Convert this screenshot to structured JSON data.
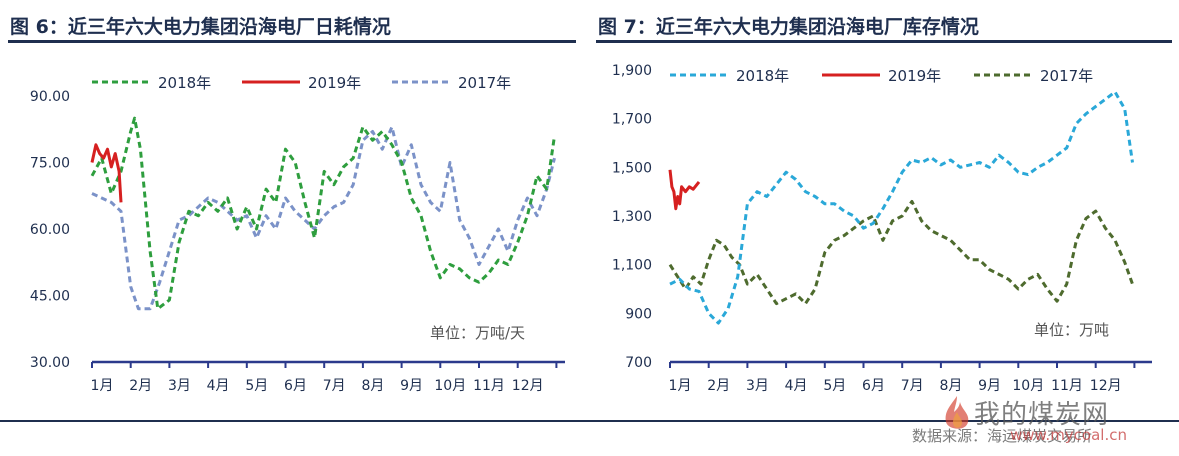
{
  "footer": {
    "source": "数据来源：海运煤炭交易所"
  },
  "watermark": {
    "text": "我的煤炭网",
    "url": "www.mycoal.cn"
  },
  "chart_data": [
    {
      "type": "line",
      "title": "图 6：近三年六大电力集团沿海电厂日耗情况",
      "unit_label": "单位：万吨/天",
      "categories": [
        "1月",
        "2月",
        "3月",
        "4月",
        "5月",
        "6月",
        "7月",
        "8月",
        "9月",
        "10月",
        "11月",
        "12月"
      ],
      "ylim": [
        30,
        90
      ],
      "y_ticks": [
        "90.00",
        "75.00",
        "60.00",
        "45.00",
        "30.00"
      ],
      "legend_position": "top",
      "colors": {
        "2018年": "#2e9e3e",
        "2019年": "#d62020",
        "2017年": "#7b92c8"
      },
      "series": [
        {
          "name": "2018年",
          "style": "dashed",
          "x": [
            1.0,
            1.25,
            1.5,
            1.75,
            2.0,
            2.1,
            2.25,
            2.5,
            2.7,
            3.0,
            3.25,
            3.5,
            3.75,
            4.0,
            4.25,
            4.5,
            4.75,
            5.0,
            5.25,
            5.5,
            5.75,
            6.0,
            6.25,
            6.5,
            6.75,
            7.0,
            7.25,
            7.5,
            7.75,
            8.0,
            8.25,
            8.5,
            8.75,
            9.0,
            9.25,
            9.5,
            9.75,
            10.0,
            10.25,
            10.5,
            10.75,
            11.0,
            11.25,
            11.5,
            11.75,
            12.0,
            12.25,
            12.5,
            12.75,
            12.95
          ],
          "y": [
            72,
            76,
            68,
            73,
            82,
            85,
            78,
            55,
            42,
            44,
            57,
            64,
            63,
            66,
            64,
            67,
            60,
            65,
            60,
            69,
            66,
            78,
            75,
            66,
            58,
            73,
            70,
            74,
            76,
            83,
            80,
            82,
            79,
            75,
            67,
            63,
            55,
            49,
            52,
            51,
            49,
            48,
            50,
            53,
            52,
            57,
            63,
            72,
            69,
            81
          ]
        },
        {
          "name": "2019年",
          "style": "solid",
          "x": [
            1.0,
            1.1,
            1.2,
            1.3,
            1.4,
            1.5,
            1.6,
            1.7,
            1.75
          ],
          "y": [
            75,
            79,
            77,
            76,
            78,
            74,
            77,
            73,
            66
          ]
        },
        {
          "name": "2017年",
          "style": "dashed",
          "x": [
            1.0,
            1.25,
            1.5,
            1.75,
            2.0,
            2.2,
            2.5,
            2.75,
            3.0,
            3.25,
            3.5,
            3.75,
            4.0,
            4.25,
            4.5,
            4.75,
            5.0,
            5.25,
            5.5,
            5.75,
            6.0,
            6.25,
            6.5,
            6.75,
            7.0,
            7.25,
            7.5,
            7.75,
            8.0,
            8.25,
            8.5,
            8.75,
            9.0,
            9.25,
            9.5,
            9.75,
            10.0,
            10.25,
            10.5,
            10.75,
            11.0,
            11.25,
            11.5,
            11.75,
            12.0,
            12.25,
            12.5,
            12.75,
            12.95
          ],
          "y": [
            68,
            67,
            66,
            64,
            47,
            42,
            42,
            48,
            55,
            62,
            63,
            65,
            67,
            66,
            64,
            62,
            63,
            58,
            63,
            60,
            67,
            64,
            62,
            60,
            63,
            65,
            66,
            70,
            80,
            82,
            78,
            83,
            74,
            79,
            70,
            66,
            64,
            75,
            62,
            58,
            52,
            56,
            60,
            55,
            62,
            67,
            63,
            69,
            76
          ]
        }
      ],
      "xlabel": "",
      "ylabel": ""
    },
    {
      "type": "line",
      "title": "图 7：近三年六大电力集团沿海电厂库存情况",
      "unit_label": "单位：万吨",
      "categories": [
        "1月",
        "2月",
        "3月",
        "4月",
        "5月",
        "6月",
        "7月",
        "8月",
        "9月",
        "10月",
        "11月",
        "12月"
      ],
      "ylim": [
        700,
        1900
      ],
      "y_ticks": [
        "1,900",
        "1,700",
        "1,500",
        "1,300",
        "1,100",
        "900",
        "700"
      ],
      "legend_position": "top",
      "colors": {
        "2018年": "#2aa8d8",
        "2019年": "#d62020",
        "2017年": "#4e6b2e"
      },
      "series": [
        {
          "name": "2018年",
          "style": "dashed",
          "x": [
            1.0,
            1.25,
            1.5,
            1.75,
            2.0,
            2.25,
            2.5,
            2.75,
            3.0,
            3.25,
            3.5,
            3.75,
            4.0,
            4.25,
            4.5,
            4.75,
            5.0,
            5.25,
            5.5,
            5.75,
            6.0,
            6.25,
            6.5,
            6.75,
            7.0,
            7.25,
            7.5,
            7.75,
            8.0,
            8.25,
            8.5,
            8.75,
            9.0,
            9.25,
            9.5,
            9.75,
            10.0,
            10.25,
            10.5,
            10.75,
            11.0,
            11.25,
            11.5,
            11.75,
            12.0,
            12.25,
            12.5,
            12.75,
            12.95
          ],
          "y": [
            1020,
            1040,
            1000,
            990,
            900,
            860,
            920,
            1050,
            1350,
            1400,
            1380,
            1430,
            1480,
            1450,
            1400,
            1380,
            1350,
            1350,
            1320,
            1300,
            1250,
            1270,
            1330,
            1400,
            1480,
            1530,
            1520,
            1540,
            1510,
            1530,
            1500,
            1510,
            1520,
            1500,
            1550,
            1520,
            1480,
            1470,
            1500,
            1520,
            1550,
            1580,
            1680,
            1720,
            1750,
            1780,
            1810,
            1740,
            1520
          ]
        },
        {
          "name": "2019年",
          "style": "solid",
          "x": [
            1.0,
            1.05,
            1.1,
            1.15,
            1.2,
            1.25,
            1.3,
            1.4,
            1.5,
            1.6,
            1.75
          ],
          "y": [
            1490,
            1420,
            1400,
            1330,
            1380,
            1350,
            1420,
            1400,
            1420,
            1410,
            1440
          ]
        },
        {
          "name": "2017年",
          "style": "dashed",
          "x": [
            1.0,
            1.2,
            1.4,
            1.6,
            1.8,
            2.0,
            2.2,
            2.4,
            2.6,
            2.8,
            3.0,
            3.25,
            3.5,
            3.75,
            4.0,
            4.25,
            4.5,
            4.75,
            5.0,
            5.25,
            5.5,
            5.75,
            6.0,
            6.25,
            6.5,
            6.75,
            7.0,
            7.25,
            7.5,
            7.75,
            8.0,
            8.25,
            8.5,
            8.75,
            9.0,
            9.25,
            9.5,
            9.75,
            10.0,
            10.25,
            10.5,
            10.75,
            11.0,
            11.25,
            11.5,
            11.75,
            12.0,
            12.25,
            12.5,
            12.75,
            12.95
          ],
          "y": [
            1100,
            1050,
            1000,
            1050,
            1020,
            1120,
            1200,
            1180,
            1130,
            1100,
            1020,
            1060,
            1000,
            940,
            960,
            980,
            940,
            1000,
            1150,
            1200,
            1220,
            1250,
            1280,
            1300,
            1200,
            1280,
            1300,
            1360,
            1280,
            1240,
            1220,
            1200,
            1160,
            1120,
            1120,
            1080,
            1060,
            1040,
            1000,
            1040,
            1060,
            1000,
            950,
            1020,
            1200,
            1290,
            1320,
            1250,
            1200,
            1110,
            1020
          ]
        }
      ],
      "xlabel": "",
      "ylabel": ""
    }
  ]
}
